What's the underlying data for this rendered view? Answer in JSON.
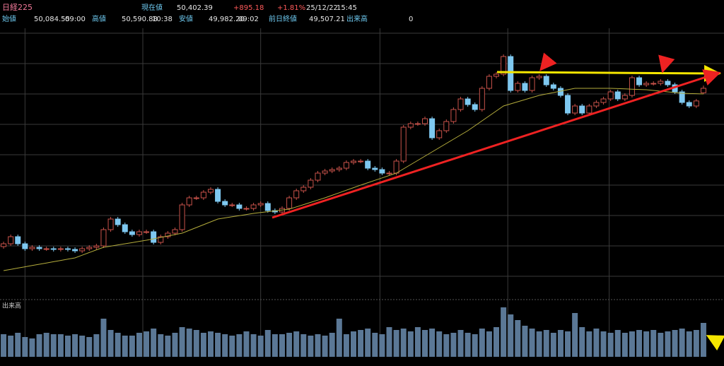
{
  "header": {
    "title": "日経225",
    "current_label": "現在値",
    "current": "50,402.39",
    "change": "+895.18",
    "change_pct": "+1.81%",
    "date": "25/12/22",
    "time": "15:45",
    "open_label": "始値",
    "open": "50,084.55",
    "open_time": "09:00",
    "high_label": "高値",
    "high": "50,590.88",
    "high_time": "10:38",
    "low_label": "安値",
    "low": "49,982.20",
    "low_time": "09:02",
    "prev_close_label": "前日終値",
    "prev_close": "49,507.21",
    "volume_label": "出来高",
    "volume": "0"
  },
  "chart_data": {
    "type": "candlestick",
    "open": [
      39200,
      39400,
      39900,
      39400,
      39050,
      39150,
      39050,
      39050,
      39000,
      39050,
      39000,
      38900,
      39050,
      39150,
      39250,
      40400,
      41150,
      40750,
      40250,
      40050,
      40250,
      40250,
      39500,
      39900,
      40150,
      40400,
      42150,
      42650,
      42650,
      43050,
      43250,
      42400,
      42150,
      42150,
      41900,
      41900,
      42150,
      42250,
      41750,
      41650,
      41900,
      42650,
      43150,
      43400,
      43900,
      44400,
      44550,
      44650,
      44750,
      45150,
      45250,
      45250,
      44750,
      44650,
      44400,
      44400,
      45250,
      47650,
      47900,
      47900,
      48250,
      46900,
      47400,
      48050,
      48900,
      49650,
      49250,
      48900,
      50400,
      51250,
      51400,
      52650,
      50250,
      50750,
      50250,
      51150,
      51250,
      50650,
      50400,
      49900,
      48650,
      49150,
      48650,
      49150,
      49400,
      49650,
      50150,
      49650,
      49900,
      51150,
      50650,
      50750,
      50750,
      50900,
      50650,
      50150,
      49400,
      49150,
      50084.55
    ],
    "high": [
      39550,
      40050,
      40050,
      39550,
      39300,
      39300,
      39200,
      39200,
      39200,
      39200,
      39150,
      39200,
      39300,
      39400,
      40550,
      41300,
      41300,
      40900,
      40400,
      40400,
      40400,
      40400,
      40050,
      40300,
      40550,
      42300,
      42800,
      42800,
      43200,
      43400,
      43400,
      42550,
      42300,
      42300,
      42050,
      42300,
      42400,
      42400,
      41900,
      42050,
      42800,
      43300,
      43550,
      44050,
      44550,
      44700,
      44800,
      44900,
      45300,
      45400,
      45400,
      45400,
      44900,
      44800,
      44550,
      45400,
      47800,
      48050,
      48050,
      48400,
      48400,
      47550,
      48200,
      49050,
      49800,
      49800,
      49400,
      50550,
      51400,
      51550,
      52800,
      52800,
      50900,
      50900,
      51300,
      51400,
      51400,
      50800,
      50550,
      50050,
      49300,
      49300,
      49300,
      49550,
      49800,
      50300,
      50300,
      50050,
      51300,
      51300,
      50900,
      50900,
      51050,
      51050,
      50800,
      50300,
      49550,
      49650,
      50590.88
    ],
    "low": [
      39050,
      39250,
      39250,
      38900,
      38900,
      38900,
      38900,
      38850,
      38850,
      38850,
      38750,
      38750,
      38900,
      39000,
      39100,
      40250,
      40600,
      40100,
      39900,
      39900,
      40100,
      39350,
      39350,
      39750,
      40000,
      40250,
      42000,
      42500,
      42500,
      42900,
      42250,
      42000,
      42000,
      41750,
      41750,
      41750,
      42000,
      41600,
      41500,
      41500,
      41750,
      42500,
      43000,
      43250,
      43750,
      44250,
      44400,
      44500,
      44600,
      45000,
      45100,
      44600,
      44500,
      44250,
      44250,
      44250,
      45100,
      47500,
      47750,
      47750,
      46750,
      46750,
      47250,
      47900,
      48750,
      49100,
      48750,
      48750,
      50250,
      51100,
      51250,
      50100,
      50100,
      50100,
      50100,
      51000,
      50500,
      50250,
      49750,
      48500,
      48500,
      48500,
      48500,
      49000,
      49250,
      49500,
      49500,
      49500,
      49750,
      50500,
      50500,
      50600,
      50600,
      50500,
      50000,
      49250,
      49000,
      49000,
      49982.2
    ],
    "close": [
      39400,
      39900,
      39400,
      39050,
      39150,
      39050,
      39050,
      39000,
      39050,
      39000,
      38900,
      39050,
      39150,
      39250,
      40400,
      41150,
      40750,
      40250,
      40050,
      40250,
      40250,
      39500,
      39900,
      40150,
      40400,
      42150,
      42650,
      42650,
      43050,
      43250,
      42400,
      42150,
      42150,
      41900,
      41900,
      42150,
      42250,
      41750,
      41650,
      41900,
      42650,
      43150,
      43400,
      43900,
      44400,
      44550,
      44650,
      44750,
      45150,
      45250,
      45250,
      44750,
      44650,
      44400,
      44400,
      45250,
      47650,
      47900,
      47900,
      48250,
      46900,
      47400,
      48050,
      48900,
      49650,
      49250,
      48900,
      50400,
      51250,
      51400,
      52650,
      50250,
      50750,
      50250,
      51150,
      51250,
      50650,
      50400,
      49900,
      48650,
      49150,
      48650,
      49150,
      49400,
      49650,
      50150,
      49650,
      49900,
      51150,
      50650,
      50750,
      50750,
      50900,
      50650,
      50150,
      49400,
      49150,
      49507.21,
      50402.39
    ],
    "ma": [
      37500,
      37590,
      37680,
      37770,
      37860,
      37950,
      38040,
      38130,
      38220,
      38310,
      38400,
      38590,
      38780,
      38970,
      39150,
      39230,
      39320,
      39400,
      39480,
      39570,
      39650,
      39750,
      39850,
      39950,
      40050,
      40150,
      40350,
      40550,
      40750,
      40950,
      41150,
      41230,
      41310,
      41390,
      41470,
      41550,
      41610,
      41670,
      41730,
      41790,
      41850,
      42010,
      42170,
      42330,
      42490,
      42650,
      42830,
      43010,
      43190,
      43370,
      43550,
      43720,
      43890,
      44060,
      44230,
      44400,
      44700,
      45000,
      45300,
      45600,
      45900,
      46200,
      46500,
      46800,
      47100,
      47400,
      47750,
      48100,
      48450,
      48800,
      49150,
      49300,
      49450,
      49600,
      49750,
      49900,
      50000,
      50100,
      50200,
      50300,
      50400,
      50400,
      50400,
      50400,
      50400,
      50400,
      50380,
      50360,
      50340,
      50320,
      50300,
      50250,
      50200,
      50150,
      50100,
      50050,
      50030,
      50020,
      50000
    ],
    "volume_label": "出来高",
    "volume": [
      1.6,
      1.5,
      1.7,
      1.4,
      1.3,
      1.6,
      1.7,
      1.6,
      1.6,
      1.5,
      1.6,
      1.5,
      1.4,
      1.6,
      2.7,
      1.9,
      1.7,
      1.5,
      1.5,
      1.7,
      1.8,
      2.0,
      1.6,
      1.5,
      1.7,
      2.1,
      2.0,
      1.9,
      1.7,
      1.8,
      1.7,
      1.6,
      1.5,
      1.6,
      1.8,
      1.6,
      1.5,
      1.9,
      1.6,
      1.6,
      1.7,
      1.8,
      1.6,
      1.5,
      1.6,
      1.5,
      1.7,
      2.7,
      1.6,
      1.8,
      1.9,
      2.0,
      1.7,
      1.6,
      2.1,
      1.9,
      2.0,
      1.8,
      2.1,
      1.9,
      2.0,
      1.8,
      1.6,
      1.7,
      1.9,
      1.7,
      1.6,
      2.0,
      1.8,
      2.1,
      3.5,
      3.0,
      2.6,
      2.2,
      2.0,
      1.8,
      1.9,
      1.7,
      1.9,
      1.8,
      3.1,
      2.1,
      1.8,
      2.0,
      1.8,
      1.7,
      1.9,
      1.7,
      1.8,
      1.9,
      1.8,
      1.9,
      1.7,
      1.8,
      1.9,
      2.0,
      1.8,
      1.9,
      2.4
    ],
    "xlim": [
      -0.5,
      98.5
    ],
    "xticks": [
      3,
      19.5,
      36,
      52.7,
      70.6,
      84.8
    ],
    "ylim": [
      35650,
      54650
    ],
    "yticks": [
      37100,
      39250,
      41400,
      43550,
      45700,
      47850,
      50000,
      52150,
      54300
    ],
    "vlim": [
      0,
      4
    ],
    "grid": true,
    "colors": {
      "up": "#c8524a",
      "down": "#7ec8f0",
      "ma": "#b4ac3c",
      "volume": "#5b7896",
      "grid": "#3a3a3a"
    }
  }
}
